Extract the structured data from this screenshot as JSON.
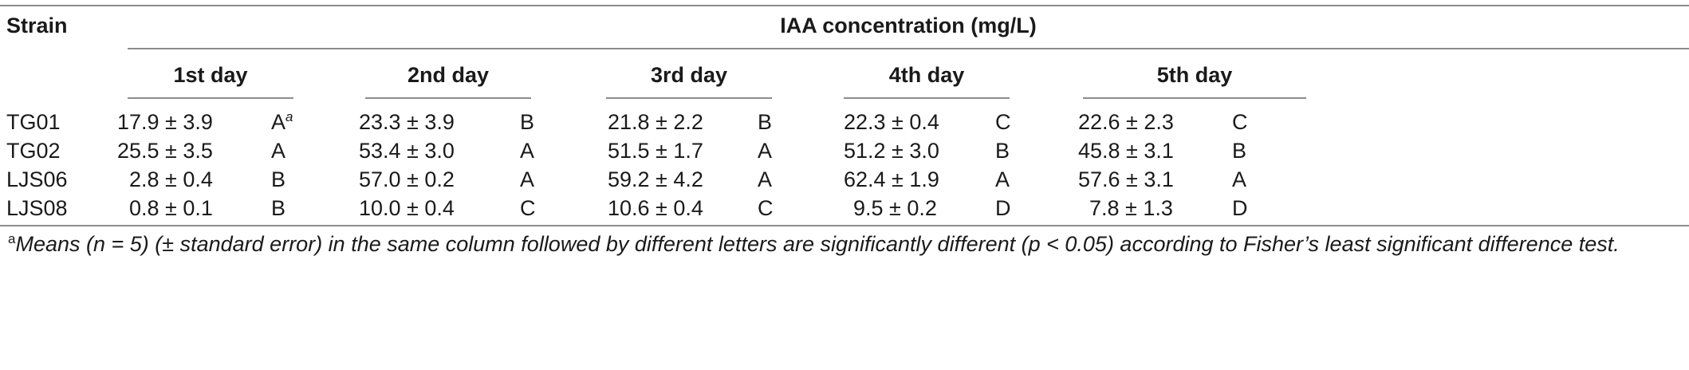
{
  "table": {
    "header": {
      "strain": "Strain",
      "group": "IAA concentration (mg/L)",
      "days": [
        "1st day",
        "2nd day",
        "3rd day",
        "4th day",
        "5th day"
      ]
    },
    "rows": [
      {
        "strain": "TG01",
        "values": [
          "17.9 ± 3.9",
          "23.3 ± 3.9",
          "21.8 ± 2.2",
          "22.3 ± 0.4",
          "22.6 ± 2.3"
        ],
        "letters": [
          "A",
          "B",
          "B",
          "C",
          "C"
        ],
        "first_letter_mark": "a"
      },
      {
        "strain": "TG02",
        "values": [
          "25.5 ± 3.5",
          "53.4 ± 3.0",
          "51.5 ± 1.7",
          "51.2 ± 3.0",
          "45.8 ± 3.1"
        ],
        "letters": [
          "A",
          "A",
          "A",
          "B",
          "B"
        ]
      },
      {
        "strain": "LJS06",
        "values": [
          "2.8 ± 0.4",
          "57.0 ± 0.2",
          "59.2 ± 4.2",
          "62.4 ± 1.9",
          "57.6 ± 3.1"
        ],
        "letters": [
          "B",
          "A",
          "A",
          "A",
          "A"
        ]
      },
      {
        "strain": "LJS08",
        "values": [
          "0.8 ± 0.1",
          "10.0 ± 0.4",
          "10.6 ± 0.4",
          "9.5 ± 0.2",
          "7.8 ± 1.3"
        ],
        "letters": [
          "B",
          "C",
          "C",
          "D",
          "D"
        ]
      }
    ]
  },
  "footnote": {
    "mark": "a",
    "text": "Means (n = 5) (± standard error) in the same column followed by different letters are significantly different (p < 0.05) according to Fisher’s least significant difference test."
  }
}
